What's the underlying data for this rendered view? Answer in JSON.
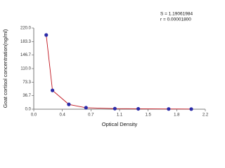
{
  "chart_data": {
    "type": "scatter",
    "annotations": [
      "S = 1.19061984",
      "r = 0.00001800"
    ],
    "xlabel": "Optical Density",
    "ylabel": "Goat cortisol concentration(ng/ml)",
    "x": [
      0.16,
      0.24,
      0.45,
      0.67,
      1.04,
      1.34,
      1.73,
      2.02
    ],
    "values": [
      201,
      51,
      13,
      4,
      1.5,
      1,
      0.6,
      0.4
    ],
    "color": "#2b2ba8",
    "line_color": "#c0141e",
    "xlim": [
      0,
      2.2
    ],
    "xticks": [
      {
        "value": 0,
        "label": "0.0"
      },
      {
        "value": 0.3667,
        "label": "0.4"
      },
      {
        "value": 0.7333,
        "label": "0.7"
      },
      1.1,
      {
        "value": 1.4667,
        "label": "1.5"
      },
      {
        "value": 1.8333,
        "label": "1.8"
      },
      2.2
    ],
    "ylim": [
      0,
      220
    ],
    "yticks": [
      {
        "value": 0,
        "label": "0.0"
      },
      36.7,
      73.3,
      {
        "value": 110,
        "label": "110.0"
      },
      146.7,
      183.3,
      {
        "value": 220,
        "label": "220.0"
      }
    ]
  }
}
